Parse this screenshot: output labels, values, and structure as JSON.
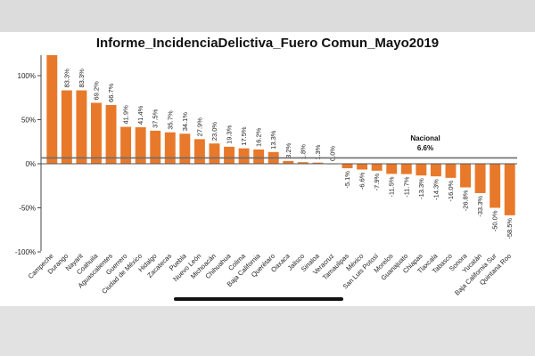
{
  "chart_data": {
    "type": "bar",
    "title": "Informe_IncidenciaDelictiva_Fuero Comun_Mayo2019",
    "xlabel": "",
    "ylabel": "",
    "ylim": [
      -100,
      120
    ],
    "yticks": [
      -100,
      -50,
      0,
      50,
      100
    ],
    "ytick_labels": [
      "-100%",
      "-50%",
      "0%",
      "50%",
      "100%"
    ],
    "bar_color": "#e8792b",
    "grid": false,
    "categories": [
      "Campeche",
      "Durango",
      "Nayarit",
      "Coahuila",
      "Aguascalientes",
      "Guerrero",
      "Ciudad de México",
      "Hidalgo",
      "Zacatecas",
      "Puebla",
      "Nuevo León",
      "Michoacán",
      "Chihuahua",
      "Colima",
      "Baja California",
      "Querétaro",
      "Oaxaca",
      "Jalisco",
      "Sinaloa",
      "Veracruz",
      "Tamaulipas",
      "México",
      "San Luis Potosí",
      "Morelos",
      "Guanajuato",
      "Chiapas",
      "Tlaxcala",
      "Tabasco",
      "Sonora",
      "Yucatán",
      "Baja California Sur",
      "Quintana Roo"
    ],
    "values": [
      125,
      83.3,
      83.3,
      69.2,
      66.7,
      41.9,
      41.4,
      37.5,
      35.7,
      34.1,
      27.9,
      23.0,
      19.3,
      17.5,
      16.2,
      13.3,
      3.2,
      1.8,
      1.3,
      0.0,
      -5.1,
      -6.6,
      -7.9,
      -11.5,
      -11.7,
      -13.3,
      -14.3,
      -16.0,
      -26.8,
      -33.3,
      -50.0,
      -58.5
    ],
    "data_labels": [
      "",
      "83.3%",
      "83.3%",
      "69.2%",
      "66.7%",
      "41.9%",
      "41.4%",
      "37.5%",
      "35.7%",
      "34.1%",
      "27.9%",
      "23.0%",
      "19.3%",
      "17.5%",
      "16.2%",
      "13.3%",
      "3.2%",
      "1.8%",
      "1.3%",
      "0.0%",
      "-5.1%",
      "-6.6%",
      "-7.9%",
      "-11.5%",
      "-11.7%",
      "-13.3%",
      "-14.3%",
      "-16.0%",
      "-26.8%",
      "-33.3%",
      "-50.0%",
      "-58.5%"
    ],
    "reference_line": {
      "label": "Nacional",
      "value": 6.6,
      "value_label": "6.6%"
    }
  }
}
